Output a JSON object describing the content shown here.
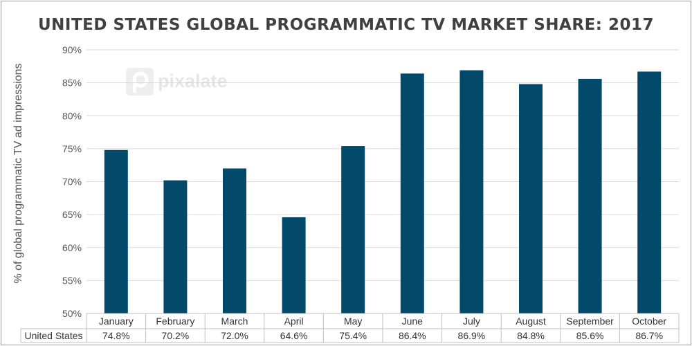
{
  "chart_data": {
    "type": "bar",
    "title": "UNITED STATES GLOBAL PROGRAMMATIC TV MARKET SHARE: 2017",
    "ylabel": "% of global programmatic TV ad impressions",
    "xlabel": "",
    "ylim": [
      50,
      90
    ],
    "yticks": [
      50,
      55,
      60,
      65,
      70,
      75,
      80,
      85,
      90
    ],
    "ytick_labels": [
      "50%",
      "55%",
      "60%",
      "65%",
      "70%",
      "75%",
      "80%",
      "85%",
      "90%"
    ],
    "categories": [
      "January",
      "February",
      "March",
      "April",
      "May",
      "June",
      "July",
      "August",
      "September",
      "October"
    ],
    "series": [
      {
        "name": "United States",
        "values": [
          74.8,
          70.2,
          72.0,
          64.6,
          75.4,
          86.4,
          86.9,
          84.8,
          85.6,
          86.7
        ],
        "value_labels": [
          "74.8%",
          "70.2%",
          "72.0%",
          "64.6%",
          "75.4%",
          "86.4%",
          "86.9%",
          "84.8%",
          "85.6%",
          "86.7%"
        ],
        "color": "#034a6a"
      }
    ],
    "grid": true,
    "data_table": true,
    "watermark": "pixalate"
  },
  "colors": {
    "bar": "#034a6a",
    "grid": "#d9d9d9",
    "text": "#555555",
    "title": "#404040"
  }
}
